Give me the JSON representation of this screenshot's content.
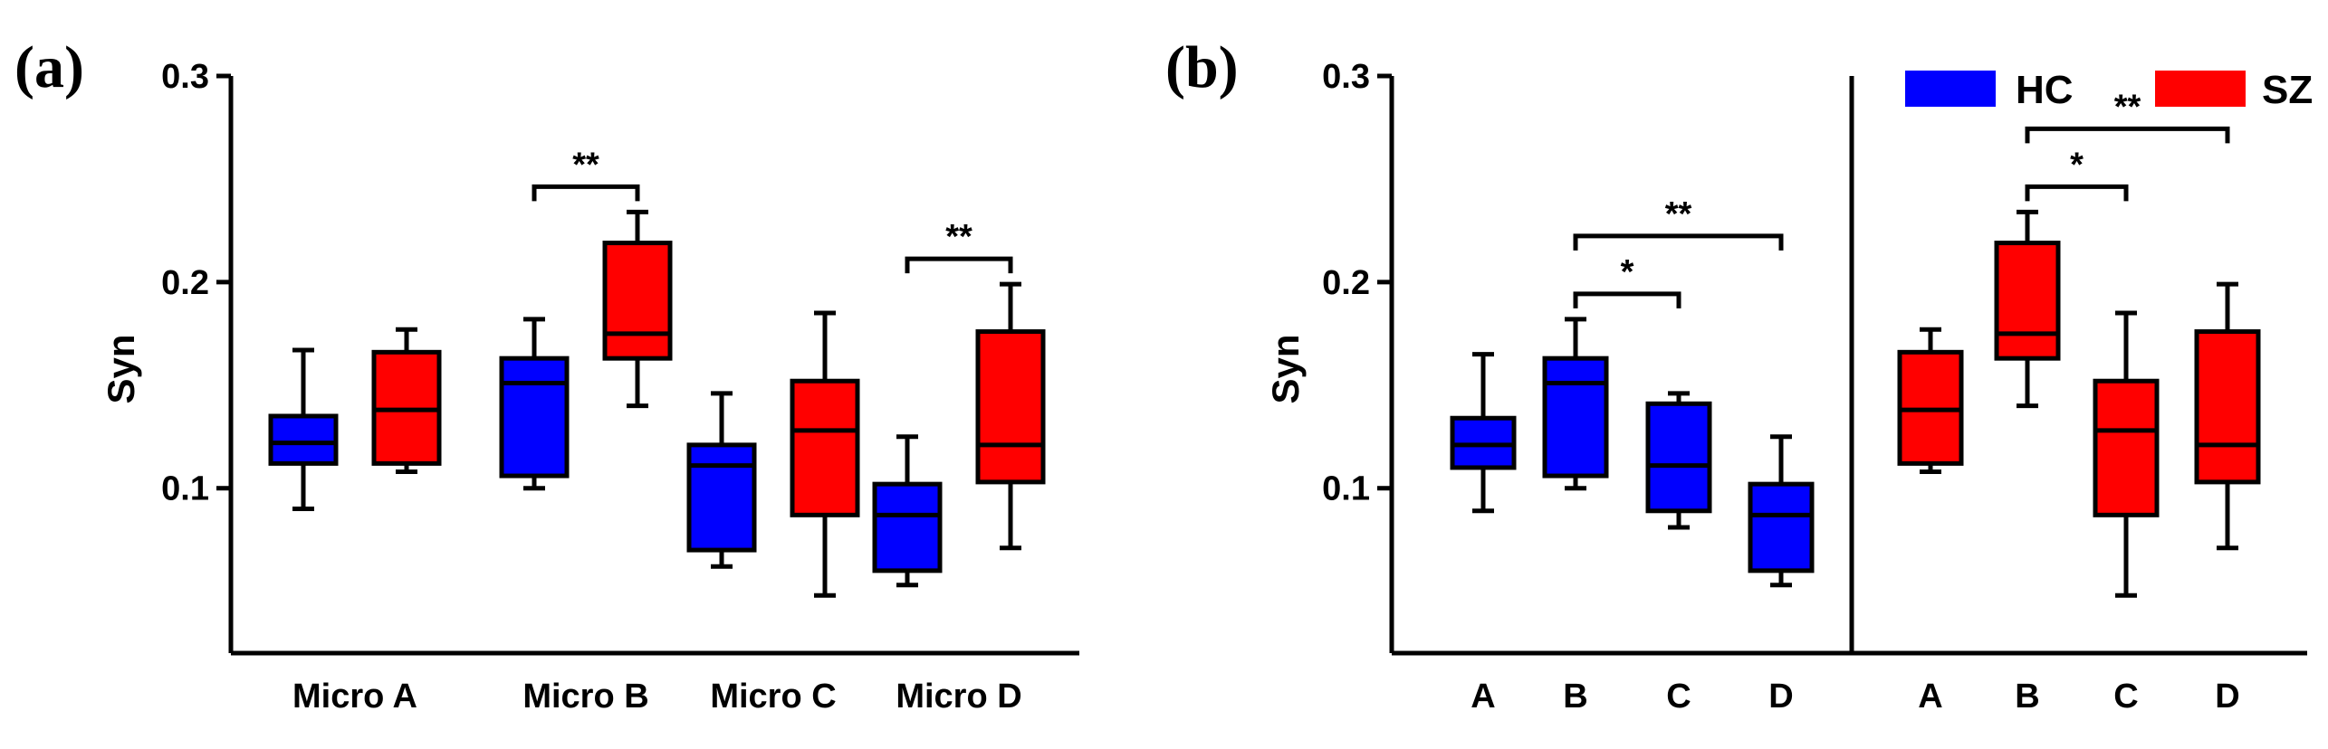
{
  "panel_a_label": "(a)",
  "panel_b_label": "(b)",
  "colors": {
    "HC": "#0000ff",
    "SZ": "#ff0000",
    "stroke": "#000000"
  },
  "legend": [
    {
      "name": "HC",
      "color": "#0000ff"
    },
    {
      "name": "SZ",
      "color": "#ff0000"
    }
  ],
  "chart_data": [
    {
      "type": "box",
      "panel": "(a)",
      "title": "",
      "ylabel": "Syn",
      "ylim": [
        0.02,
        0.3
      ],
      "yticks": [
        0.1,
        0.2,
        0.3
      ],
      "ytick_labels": [
        "0.1",
        "0.2",
        "0.3"
      ],
      "categories": [
        "Micro A",
        "Micro B",
        "Micro C",
        "Micro D"
      ],
      "boxes": [
        {
          "category": "Micro A",
          "group": "HC",
          "min": 0.09,
          "q1": 0.112,
          "median": 0.122,
          "q3": 0.135,
          "max": 0.167
        },
        {
          "category": "Micro A",
          "group": "SZ",
          "min": 0.108,
          "q1": 0.112,
          "median": 0.138,
          "q3": 0.166,
          "max": 0.177
        },
        {
          "category": "Micro B",
          "group": "HC",
          "min": 0.1,
          "q1": 0.106,
          "median": 0.151,
          "q3": 0.163,
          "max": 0.182
        },
        {
          "category": "Micro B",
          "group": "SZ",
          "min": 0.14,
          "q1": 0.163,
          "median": 0.175,
          "q3": 0.219,
          "max": 0.234
        },
        {
          "category": "Micro C",
          "group": "HC",
          "min": 0.062,
          "q1": 0.07,
          "median": 0.111,
          "q3": 0.121,
          "max": 0.146
        },
        {
          "category": "Micro C",
          "group": "SZ",
          "min": 0.048,
          "q1": 0.087,
          "median": 0.128,
          "q3": 0.152,
          "max": 0.185
        },
        {
          "category": "Micro D",
          "group": "HC",
          "min": 0.053,
          "q1": 0.06,
          "median": 0.087,
          "q3": 0.102,
          "max": 0.125
        },
        {
          "category": "Micro D",
          "group": "SZ",
          "min": 0.071,
          "q1": 0.103,
          "median": 0.121,
          "q3": 0.176,
          "max": 0.199
        }
      ],
      "significance": [
        {
          "between": [
            "Micro B HC",
            "Micro B SZ"
          ],
          "label": "**"
        },
        {
          "between": [
            "Micro D HC",
            "Micro D SZ"
          ],
          "label": "**"
        }
      ]
    },
    {
      "type": "box",
      "panel": "(b)",
      "title": "",
      "ylabel": "Syn",
      "ylim": [
        0.02,
        0.3
      ],
      "yticks": [
        0.1,
        0.2,
        0.3
      ],
      "ytick_labels": [
        "0.1",
        "0.2",
        "0.3"
      ],
      "categories": [
        "A",
        "B",
        "C",
        "D"
      ],
      "groups": [
        {
          "name": "HC",
          "boxes": [
            {
              "category": "A",
              "min": 0.089,
              "q1": 0.11,
              "median": 0.121,
              "q3": 0.134,
              "max": 0.165
            },
            {
              "category": "B",
              "min": 0.1,
              "q1": 0.106,
              "median": 0.151,
              "q3": 0.163,
              "max": 0.182
            },
            {
              "category": "C",
              "min": 0.081,
              "q1": 0.089,
              "median": 0.111,
              "q3": 0.141,
              "max": 0.146
            },
            {
              "category": "D",
              "min": 0.053,
              "q1": 0.06,
              "median": 0.087,
              "q3": 0.102,
              "max": 0.125
            }
          ],
          "significance": [
            {
              "between": [
                "B",
                "C"
              ],
              "label": "*"
            },
            {
              "between": [
                "B",
                "D"
              ],
              "label": "**"
            }
          ]
        },
        {
          "name": "SZ",
          "boxes": [
            {
              "category": "A",
              "min": 0.108,
              "q1": 0.112,
              "median": 0.138,
              "q3": 0.166,
              "max": 0.177
            },
            {
              "category": "B",
              "min": 0.14,
              "q1": 0.163,
              "median": 0.175,
              "q3": 0.219,
              "max": 0.234
            },
            {
              "category": "C",
              "min": 0.048,
              "q1": 0.087,
              "median": 0.128,
              "q3": 0.152,
              "max": 0.185
            },
            {
              "category": "D",
              "min": 0.071,
              "q1": 0.103,
              "median": 0.121,
              "q3": 0.176,
              "max": 0.199
            }
          ],
          "significance": [
            {
              "between": [
                "B",
                "C"
              ],
              "label": "*"
            },
            {
              "between": [
                "B",
                "D"
              ],
              "label": "**"
            }
          ]
        }
      ]
    }
  ]
}
